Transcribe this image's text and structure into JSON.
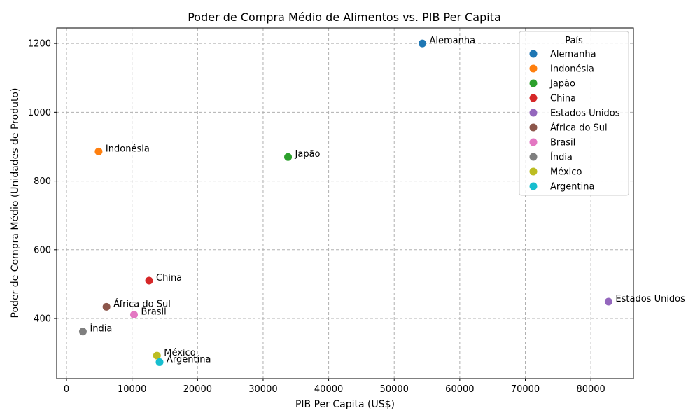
{
  "chart_data": {
    "type": "scatter",
    "title": "Poder de Compra Médio de Alimentos vs. PIB Per Capita",
    "xlabel": "PIB Per Capita (US$)",
    "ylabel": "Poder de Compra Médio (Unidades de Produto)",
    "xlim": [
      -1500,
      86500
    ],
    "ylim": [
      225,
      1245
    ],
    "xticks": [
      0,
      10000,
      20000,
      30000,
      40000,
      50000,
      60000,
      70000,
      80000
    ],
    "yticks": [
      400,
      600,
      800,
      1000,
      1200
    ],
    "grid": true,
    "legend": {
      "title": "País",
      "placement": "top-right"
    },
    "points": [
      {
        "label": "Alemanha",
        "x": 54300,
        "y": 1200,
        "color": "#1f77b4"
      },
      {
        "label": "Indonésia",
        "x": 4900,
        "y": 886,
        "color": "#ff7f0e"
      },
      {
        "label": "Japão",
        "x": 33800,
        "y": 870,
        "color": "#2ca02c"
      },
      {
        "label": "China",
        "x": 12600,
        "y": 510,
        "color": "#d62728"
      },
      {
        "label": "Estados Unidos",
        "x": 82700,
        "y": 449,
        "color": "#9467bd"
      },
      {
        "label": "África do Sul",
        "x": 6100,
        "y": 434,
        "color": "#8c564b"
      },
      {
        "label": "Brasil",
        "x": 10300,
        "y": 411,
        "color": "#e377c2"
      },
      {
        "label": "Índia",
        "x": 2500,
        "y": 362,
        "color": "#7f7f7f"
      },
      {
        "label": "México",
        "x": 13800,
        "y": 292,
        "color": "#bcbd22"
      },
      {
        "label": "Argentina",
        "x": 14200,
        "y": 273,
        "color": "#17becf"
      }
    ]
  }
}
